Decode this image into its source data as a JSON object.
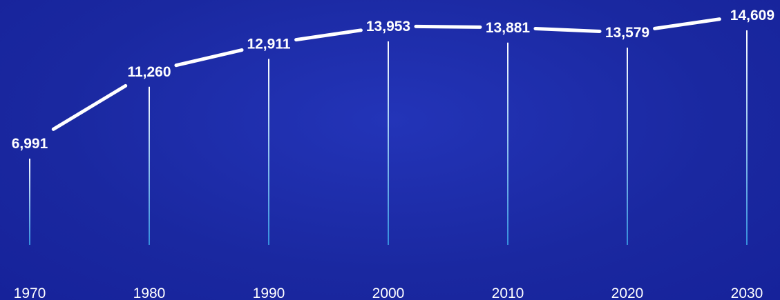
{
  "chart_data": {
    "type": "line",
    "title": "",
    "xlabel": "",
    "ylabel": "",
    "x": [
      1970,
      1980,
      1990,
      2000,
      2010,
      2020,
      2030
    ],
    "categories": [
      "1970",
      "1980",
      "1990",
      "2000",
      "2010",
      "2020",
      "2030"
    ],
    "values": [
      6991,
      11260,
      12911,
      13953,
      13881,
      13579,
      14609
    ],
    "data_labels": [
      "6,991",
      "11,260",
      "12,911",
      "13,953",
      "13,881",
      "13,579",
      "14,609"
    ],
    "grid": false,
    "legend": "none",
    "colors": {
      "background": "#1b2aa6",
      "line": "#ffffff",
      "drop_line_top": "#ffffff",
      "drop_line_bottom": "#3aa0e8",
      "text": "#ffffff"
    }
  }
}
